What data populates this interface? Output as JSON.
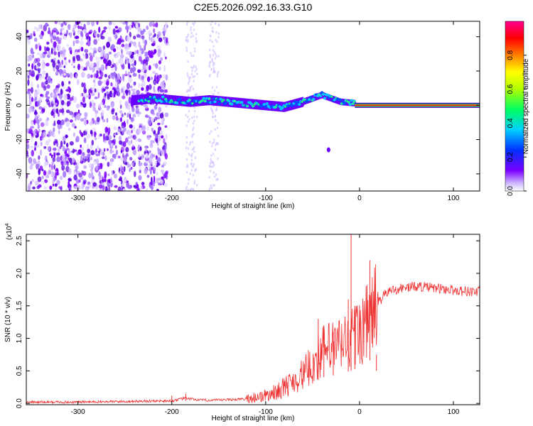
{
  "chart_data": [
    {
      "type": "heatmap",
      "title": "C2E5.2026.092.16.33.G10",
      "xlabel": "Height of straight line (km)",
      "ylabel": "Frequency (Hz)",
      "xlim": [
        -355,
        128
      ],
      "ylim": [
        -50,
        49
      ],
      "x_ticks": [
        -300,
        -200,
        -100,
        0,
        100
      ],
      "x_tick_labels": [
        "-300",
        "-200",
        "-100",
        "0",
        "100"
      ],
      "y_ticks": [
        -40,
        -20,
        0,
        20,
        40
      ],
      "y_tick_labels": [
        "-40",
        "-20",
        "0",
        "20",
        "40"
      ],
      "colorbar": {
        "label": "Normalized spectral amplitude",
        "range": [
          0,
          1
        ],
        "ticks": [
          0.0,
          0.2,
          0.4,
          0.6,
          0.8
        ],
        "tick_labels": [
          "0.0",
          "0.2",
          "0.4",
          "0.6",
          "0.8"
        ],
        "colors": [
          "#ffffff",
          "#7a00ff",
          "#0030ff",
          "#00d0ff",
          "#00ff60",
          "#b0ff00",
          "#ffff00",
          "#ff8000",
          "#ff0000",
          "#ff0090"
        ]
      },
      "signal_track": [
        {
          "x": -240,
          "f": 3
        },
        {
          "x": -220,
          "f": 4
        },
        {
          "x": -200,
          "f": 3
        },
        {
          "x": -180,
          "f": 2
        },
        {
          "x": -160,
          "f": 3
        },
        {
          "x": -140,
          "f": 2
        },
        {
          "x": -120,
          "f": 1
        },
        {
          "x": -100,
          "f": 0
        },
        {
          "x": -80,
          "f": -1
        },
        {
          "x": -60,
          "f": 2
        },
        {
          "x": -40,
          "f": 6
        },
        {
          "x": -20,
          "f": 2
        },
        {
          "x": 0,
          "f": 1
        },
        {
          "x": 20,
          "f": 0
        },
        {
          "x": 60,
          "f": 0
        },
        {
          "x": 100,
          "f": 0
        },
        {
          "x": 128,
          "f": 0
        }
      ],
      "isolated_blob": {
        "x": -33,
        "f": -26
      }
    },
    {
      "type": "line",
      "xlabel": "Height of straight line (km)",
      "ylabel": "SNR (10 * v/v)",
      "multiplier": "(x10",
      "multiplier_exp": "4",
      "xlim": [
        -355,
        128
      ],
      "ylim": [
        -0.02,
        2.6
      ],
      "x_ticks": [
        -300,
        -200,
        -100,
        0,
        100
      ],
      "x_tick_labels": [
        "-300",
        "-200",
        "-100",
        "0",
        "100"
      ],
      "y_ticks": [
        0.0,
        0.5,
        1.0,
        1.5,
        2.0,
        2.5
      ],
      "y_tick_labels": [
        "0.0",
        "0.5",
        "1.0",
        "1.5",
        "2.0",
        "2.5"
      ],
      "series": [
        {
          "name": "SNR",
          "color": "#ee3333",
          "x": [
            -355,
            -300,
            -250,
            -200,
            -185,
            -170,
            -150,
            -120,
            -100,
            -90,
            -80,
            -70,
            -60,
            -50,
            -40,
            -30,
            -20,
            -10,
            0,
            10,
            20,
            30,
            40,
            50,
            60,
            70,
            80,
            90,
            100,
            110,
            120,
            128
          ],
          "y": [
            0.02,
            0.02,
            0.03,
            0.04,
            0.08,
            0.05,
            0.05,
            0.07,
            0.12,
            0.17,
            0.25,
            0.35,
            0.45,
            0.6,
            0.8,
            0.85,
            0.9,
            1.0,
            1.1,
            1.3,
            1.55,
            1.72,
            1.76,
            1.78,
            1.8,
            1.79,
            1.77,
            1.76,
            1.74,
            1.73,
            1.72,
            1.72
          ]
        }
      ],
      "spikes": [
        {
          "x": -200,
          "y": 0.12
        },
        {
          "x": -185,
          "y": 0.15
        },
        {
          "x": -44,
          "y": 1.3
        },
        {
          "x": -38,
          "y": 1.2
        },
        {
          "x": -28,
          "y": 1.1
        },
        {
          "x": -12,
          "y": 1.6
        },
        {
          "x": -9,
          "y": 2.6
        },
        {
          "x": -5,
          "y": 1.5
        },
        {
          "x": 11,
          "y": 2.2
        },
        {
          "x": 18,
          "y": 0.5
        }
      ]
    }
  ]
}
